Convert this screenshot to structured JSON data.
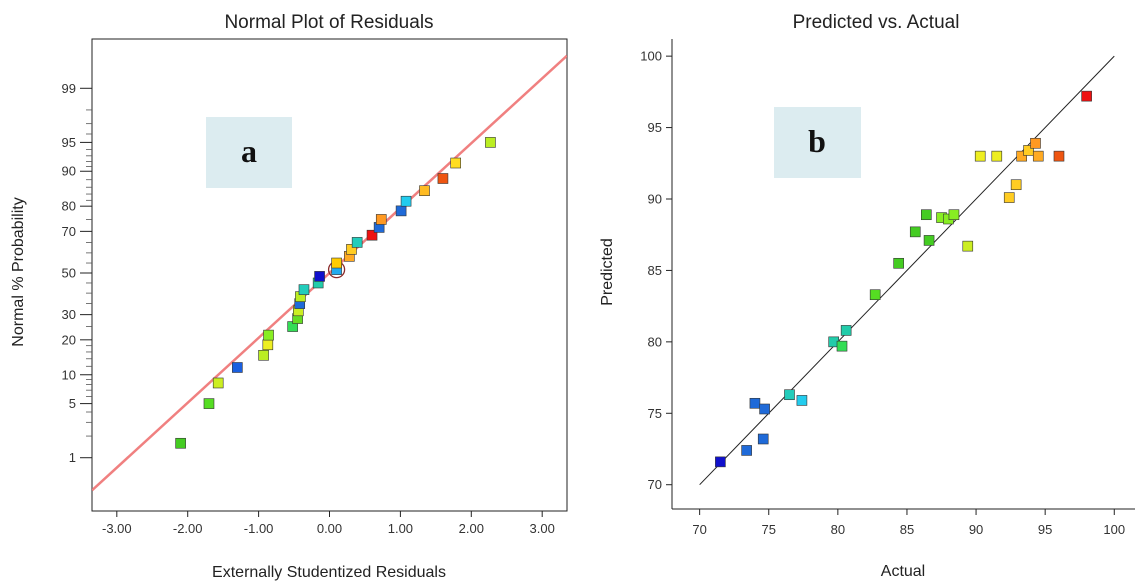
{
  "chart_data": [
    {
      "type": "scatter",
      "title": "Normal Plot of Residuals",
      "xlabel": "Externally Studentized Residuals",
      "ylabel": "Normal % Probability",
      "panel_label": "a",
      "xlim": [
        -3.35,
        3.35
      ],
      "xticks": [
        -3.0,
        -2.0,
        -1.0,
        0.0,
        1.0,
        2.0,
        3.0
      ],
      "xtick_labels": [
        "-3.00",
        "-2.00",
        "-1.00",
        "0.00",
        "1.00",
        "2.00",
        "3.00"
      ],
      "yscale": "normal-probability",
      "yticks": [
        1,
        5,
        10,
        20,
        30,
        50,
        70,
        80,
        90,
        95,
        99
      ],
      "ytick_labels": [
        "1",
        "5",
        "10",
        "20",
        "30",
        "50",
        "70",
        "80",
        "90",
        "95",
        "99"
      ],
      "reference_line": {
        "color": "#f08080",
        "from": [
          -3.35,
          0.31
        ],
        "to": [
          3.35,
          99.69
        ]
      },
      "highlighted_point_index": 15,
      "points": [
        {
          "x": -2.1,
          "y": 1.6,
          "color": "#44cc22"
        },
        {
          "x": -1.7,
          "y": 5.0,
          "color": "#55dd22"
        },
        {
          "x": -1.57,
          "y": 8.3,
          "color": "#ccee22"
        },
        {
          "x": -1.3,
          "y": 11.7,
          "color": "#1a5fe0"
        },
        {
          "x": -0.93,
          "y": 15.0,
          "color": "#bbee22"
        },
        {
          "x": -0.87,
          "y": 18.3,
          "color": "#eeee22"
        },
        {
          "x": -0.86,
          "y": 21.7,
          "color": "#88ee22"
        },
        {
          "x": -0.52,
          "y": 25.0,
          "color": "#33dd55"
        },
        {
          "x": -0.45,
          "y": 28.3,
          "color": "#66dd22"
        },
        {
          "x": -0.44,
          "y": 31.7,
          "color": "#ccee22"
        },
        {
          "x": -0.42,
          "y": 35.0,
          "color": "#1f6ad8"
        },
        {
          "x": -0.41,
          "y": 38.3,
          "color": "#bbee22"
        },
        {
          "x": -0.36,
          "y": 41.7,
          "color": "#22ccbb"
        },
        {
          "x": -0.16,
          "y": 45.0,
          "color": "#22ccaa"
        },
        {
          "x": -0.14,
          "y": 48.3,
          "color": "#1010cc"
        },
        {
          "x": 0.1,
          "y": 51.7,
          "color": "#22aaee"
        },
        {
          "x": 0.1,
          "y": 55.0,
          "color": "#ffcc00"
        },
        {
          "x": 0.28,
          "y": 58.3,
          "color": "#ffaa22"
        },
        {
          "x": 0.31,
          "y": 61.7,
          "color": "#ffcc22"
        },
        {
          "x": 0.39,
          "y": 65.0,
          "color": "#22ccbb"
        },
        {
          "x": 0.6,
          "y": 68.3,
          "color": "#ee1111"
        },
        {
          "x": 0.7,
          "y": 71.7,
          "color": "#1f6ad8"
        },
        {
          "x": 0.73,
          "y": 75.0,
          "color": "#ff9922"
        },
        {
          "x": 1.01,
          "y": 78.3,
          "color": "#1f6ad8"
        },
        {
          "x": 1.08,
          "y": 81.7,
          "color": "#22ccee"
        },
        {
          "x": 1.34,
          "y": 85.0,
          "color": "#ffbb22"
        },
        {
          "x": 1.6,
          "y": 88.3,
          "color": "#ee5511"
        },
        {
          "x": 1.78,
          "y": 91.7,
          "color": "#ffdd22"
        },
        {
          "x": 2.27,
          "y": 95.0,
          "color": "#bbee22"
        }
      ]
    },
    {
      "type": "scatter",
      "title": "Predicted vs. Actual",
      "xlabel": "Actual",
      "ylabel": "Predicted",
      "panel_label": "b",
      "xlim": [
        68,
        101.5
      ],
      "ylim": [
        68.3,
        101.2
      ],
      "xticks": [
        70,
        75,
        80,
        85,
        90,
        95,
        100
      ],
      "yticks": [
        70,
        75,
        80,
        85,
        90,
        95,
        100
      ],
      "reference_line": {
        "color": "#222222",
        "from": [
          70,
          70
        ],
        "to": [
          100,
          100
        ]
      },
      "points": [
        {
          "x": 71.5,
          "y": 71.6,
          "color": "#1010cc"
        },
        {
          "x": 73.4,
          "y": 72.4,
          "color": "#1f6ad8"
        },
        {
          "x": 74.0,
          "y": 75.7,
          "color": "#1f6ad8"
        },
        {
          "x": 74.6,
          "y": 73.2,
          "color": "#1f6ad8"
        },
        {
          "x": 74.7,
          "y": 75.3,
          "color": "#1f6ad8"
        },
        {
          "x": 76.5,
          "y": 76.3,
          "color": "#22ccbb"
        },
        {
          "x": 77.4,
          "y": 75.9,
          "color": "#22ccee"
        },
        {
          "x": 79.7,
          "y": 80.0,
          "color": "#22ccaa"
        },
        {
          "x": 80.3,
          "y": 79.7,
          "color": "#33dd55"
        },
        {
          "x": 80.6,
          "y": 80.8,
          "color": "#22ccaa"
        },
        {
          "x": 82.7,
          "y": 83.3,
          "color": "#55dd22"
        },
        {
          "x": 84.4,
          "y": 85.5,
          "color": "#44cc22"
        },
        {
          "x": 85.6,
          "y": 87.7,
          "color": "#44cc22"
        },
        {
          "x": 86.4,
          "y": 88.9,
          "color": "#44cc22"
        },
        {
          "x": 86.6,
          "y": 87.1,
          "color": "#44cc22"
        },
        {
          "x": 87.5,
          "y": 88.7,
          "color": "#88ee22"
        },
        {
          "x": 88.0,
          "y": 88.6,
          "color": "#88ee22"
        },
        {
          "x": 88.4,
          "y": 88.9,
          "color": "#88ee22"
        },
        {
          "x": 89.4,
          "y": 86.7,
          "color": "#ccee22"
        },
        {
          "x": 90.3,
          "y": 93.0,
          "color": "#eeee22"
        },
        {
          "x": 91.5,
          "y": 93.0,
          "color": "#eeee22"
        },
        {
          "x": 92.4,
          "y": 90.1,
          "color": "#ffcc22"
        },
        {
          "x": 92.9,
          "y": 91.0,
          "color": "#ffcc22"
        },
        {
          "x": 93.3,
          "y": 93.0,
          "color": "#ffaa22"
        },
        {
          "x": 93.8,
          "y": 93.4,
          "color": "#ffcc22"
        },
        {
          "x": 94.3,
          "y": 93.9,
          "color": "#ff9922"
        },
        {
          "x": 94.5,
          "y": 93.0,
          "color": "#ffaa22"
        },
        {
          "x": 96.0,
          "y": 93.0,
          "color": "#ee5511"
        },
        {
          "x": 98.0,
          "y": 97.2,
          "color": "#ee1111"
        }
      ]
    }
  ]
}
